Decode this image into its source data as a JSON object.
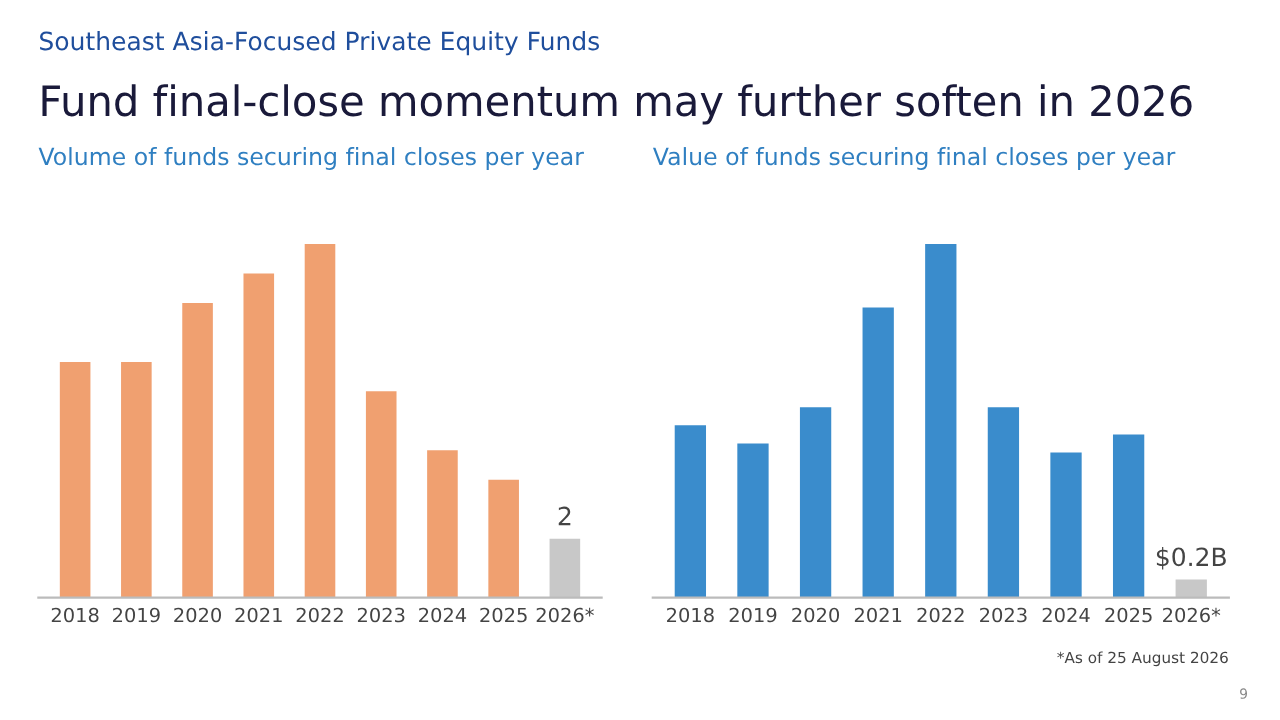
{
  "chart_data": [
    {
      "type": "bar",
      "title": "Volume of funds securing final closes per year",
      "annotations": [
        "Southeast Asia-Focused Private Equity Funds",
        "Fund final-close momentum may further soften in 2026"
      ],
      "categories": [
        "2018",
        "2019",
        "2020",
        "2021",
        "2022",
        "2023",
        "2024",
        "2025",
        "2026*"
      ],
      "values": [
        8,
        8,
        10,
        11,
        12,
        7,
        5,
        4,
        2
      ],
      "colors": [
        "#f0a070",
        "#f0a070",
        "#f0a070",
        "#f0a070",
        "#f0a070",
        "#f0a070",
        "#f0a070",
        "#f0a070",
        "#c8c8c8"
      ],
      "value_labels": [
        null,
        null,
        null,
        null,
        null,
        null,
        null,
        null,
        "2"
      ],
      "grid": false,
      "legend": false
    },
    {
      "type": "bar",
      "title": "Value of funds securing final closes per year",
      "annotations": [
        "*As of 25 August 2026",
        "9"
      ],
      "categories": [
        "2018",
        "2019",
        "2020",
        "2021",
        "2022",
        "2023",
        "2024",
        "2025",
        "2026*"
      ],
      "values": [
        1.9,
        1.7,
        2.1,
        3.2,
        3.9,
        2.1,
        1.6,
        1.8,
        0.2
      ],
      "colors": [
        "#3a8ccc",
        "#3a8ccc",
        "#3a8ccc",
        "#3a8ccc",
        "#3a8ccc",
        "#3a8ccc",
        "#3a8ccc",
        "#3a8ccc",
        "#c8c8c8"
      ],
      "value_labels": [
        null,
        null,
        null,
        null,
        null,
        null,
        null,
        null,
        "$0.2B"
      ],
      "grid": false,
      "legend": false
    }
  ]
}
